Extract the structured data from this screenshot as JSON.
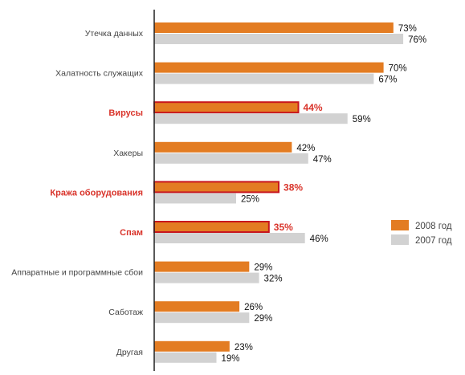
{
  "chart_data": {
    "type": "bar",
    "orientation": "horizontal",
    "title": "",
    "xlabel": "",
    "ylabel": "",
    "xlim": [
      0,
      100
    ],
    "grid": false,
    "legend_position": "right",
    "value_suffix": "%",
    "colors": {
      "s2008": "#E37C22",
      "s2007": "#D2D2D2",
      "highlight_text": "#D9342B",
      "highlight_border": "#C8161E",
      "axis": "#222222",
      "label": "#444444",
      "value": "#111111"
    },
    "categories": [
      "Утечка данных",
      "Халатность служащих",
      "Вирусы",
      "Хакеры",
      "Кража оборудования",
      "Спам",
      "Аппаратные и программные сбои",
      "Саботаж",
      "Другая"
    ],
    "highlighted": [
      false,
      false,
      true,
      false,
      true,
      true,
      false,
      false,
      false
    ],
    "series": [
      {
        "name": "2008 год",
        "values": [
          73,
          70,
          44,
          42,
          38,
          35,
          29,
          26,
          23
        ]
      },
      {
        "name": "2007 год",
        "values": [
          76,
          67,
          59,
          47,
          25,
          46,
          32,
          29,
          19
        ]
      }
    ]
  }
}
